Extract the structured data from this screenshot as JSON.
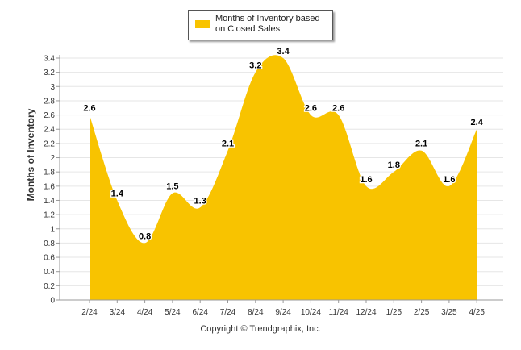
{
  "chart_data": {
    "type": "area",
    "title": "",
    "xlabel": "",
    "ylabel": "Months of Inventory",
    "ylim": [
      0,
      3.4
    ],
    "ytick_step": 0.2,
    "grid": true,
    "legend": "top-center",
    "categories": [
      "2/24",
      "3/24",
      "4/24",
      "5/24",
      "6/24",
      "7/24",
      "8/24",
      "9/24",
      "10/24",
      "11/24",
      "12/24",
      "1/25",
      "2/25",
      "3/25",
      "4/25"
    ],
    "series": [
      {
        "name": "Months of Inventory based on Closed Sales",
        "color": "#F8C300",
        "values": [
          2.6,
          1.4,
          0.8,
          1.5,
          1.3,
          2.1,
          3.2,
          3.4,
          2.6,
          2.6,
          1.6,
          1.8,
          2.1,
          1.6,
          2.4
        ],
        "labels": [
          "2.6",
          "1.4",
          "0.8",
          "1.5",
          "1.3",
          "2.1",
          "3.2",
          "3.4",
          "2.6",
          "2.6",
          "1.6",
          "1.8",
          "2.1",
          "1.6",
          "2.4"
        ]
      }
    ]
  },
  "legend": {
    "text": "Months of Inventory based on Closed Sales",
    "color": "#F8C300"
  },
  "footer": {
    "copyright": "Copyright © Trendgraphix, Inc."
  }
}
